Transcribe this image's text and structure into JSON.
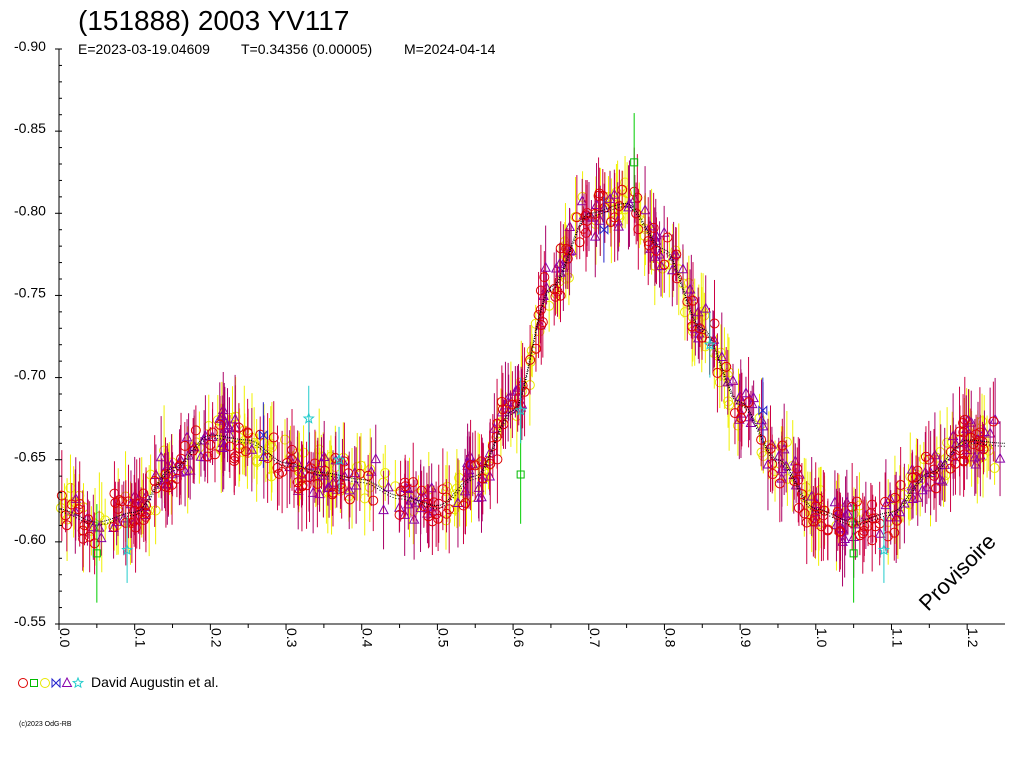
{
  "title": "(151888) 2003 YV117",
  "subtitle": {
    "epoch": "E=2023-03-19.04609",
    "period": "T=0.34356 (0.00005)",
    "modified": "M=2024-04-14"
  },
  "watermark": "Provisoire",
  "copyright": "(c)2023 OdG-RB",
  "legend": {
    "label": "David Augustin et al.",
    "symbols": [
      {
        "shape": "circle",
        "color": "#dd0000"
      },
      {
        "shape": "square",
        "color": "#00bb00"
      },
      {
        "shape": "circle",
        "color": "#e8e800"
      },
      {
        "shape": "bowtie",
        "color": "#2222cc"
      },
      {
        "shape": "triangle",
        "color": "#8800aa"
      },
      {
        "shape": "star",
        "color": "#22cccc"
      }
    ]
  },
  "chart_data": {
    "type": "scatter",
    "title": "(151888) 2003 YV117",
    "xlabel": "",
    "ylabel": "",
    "xlim": [
      0.0,
      1.25
    ],
    "ylim": [
      -0.9,
      -0.55
    ],
    "y_inverted": true,
    "x_ticks": [
      "0.0",
      "0.1",
      "0.2",
      "0.3",
      "0.4",
      "0.5",
      "0.6",
      "0.7",
      "0.8",
      "0.9",
      "1.0",
      "1.1",
      "1.2"
    ],
    "y_ticks": [
      "-0.90",
      "-0.85",
      "-0.80",
      "-0.75",
      "-0.70",
      "-0.65",
      "-0.60",
      "-0.55"
    ],
    "fit_curve": {
      "name": "fit",
      "x": [
        0.0,
        0.05,
        0.1,
        0.15,
        0.2,
        0.25,
        0.3,
        0.35,
        0.4,
        0.45,
        0.5,
        0.55,
        0.6,
        0.65,
        0.7,
        0.75,
        0.8,
        0.85,
        0.9,
        0.95,
        1.0,
        1.05,
        1.1,
        1.15,
        1.2,
        1.25
      ],
      "y": [
        -0.62,
        -0.612,
        -0.618,
        -0.645,
        -0.665,
        -0.662,
        -0.648,
        -0.642,
        -0.638,
        -0.628,
        -0.622,
        -0.64,
        -0.68,
        -0.755,
        -0.8,
        -0.806,
        -0.778,
        -0.73,
        -0.685,
        -0.65,
        -0.62,
        -0.612,
        -0.618,
        -0.642,
        -0.662,
        -0.66
      ]
    },
    "series": [
      {
        "marker": "circle",
        "color": "#dd0000",
        "errbar": "#cc0044",
        "rel_y": 0.8
      },
      {
        "marker": "triangle",
        "color": "#8800aa",
        "errbar": "#aa0066",
        "rel_y": 1.0
      },
      {
        "marker": "circle",
        "color": "#e8e800",
        "errbar": "#f0f000",
        "rel_y": 0.9
      },
      {
        "marker": "square",
        "color": "#00bb00",
        "errbar": "#00cc00",
        "x": [
          0.05,
          0.61,
          0.76,
          1.05
        ],
        "y": [
          -0.593,
          -0.641,
          -0.831,
          -0.593
        ]
      },
      {
        "marker": "star",
        "color": "#22cccc",
        "errbar": "#22cccc",
        "x": [
          0.09,
          0.33,
          0.37,
          0.61,
          0.86,
          1.09
        ],
        "y": [
          -0.595,
          -0.675,
          -0.65,
          -0.68,
          -0.72,
          -0.595
        ]
      },
      {
        "marker": "bowtie",
        "color": "#2222cc",
        "errbar": "#2222cc",
        "x": [
          0.27,
          0.72,
          0.93
        ],
        "y": [
          -0.665,
          -0.79,
          -0.68
        ]
      }
    ]
  }
}
